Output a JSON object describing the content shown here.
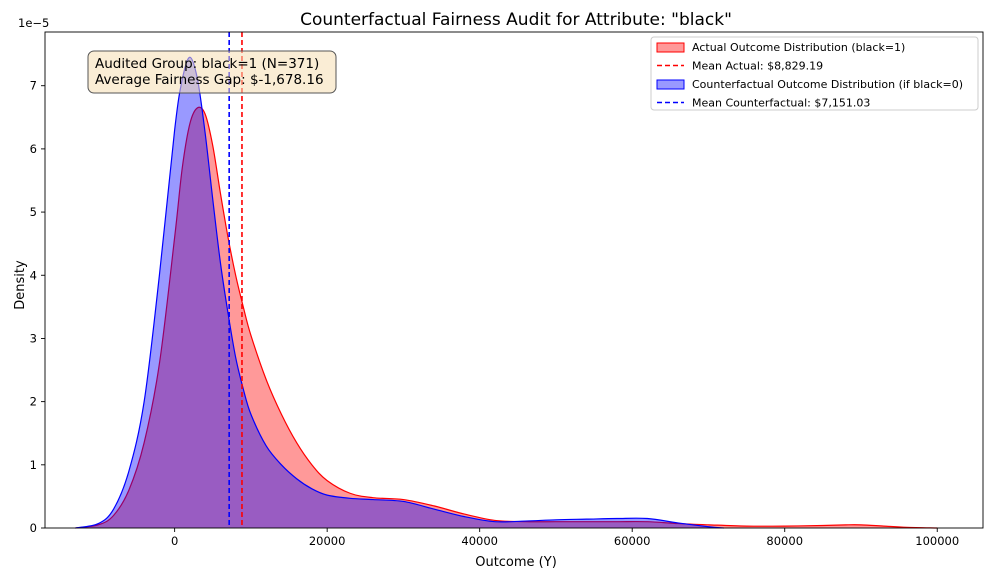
{
  "chart_data": {
    "type": "area",
    "title": "Counterfactual Fairness Audit for Attribute: \"black\"",
    "xlabel": "Outcome (Y)",
    "ylabel": "Density",
    "y_offset_text": "1e−5",
    "xlim": [
      -17000,
      106000
    ],
    "ylim": [
      0,
      7.85
    ],
    "x_ticks": [
      0,
      20000,
      40000,
      60000,
      80000,
      100000
    ],
    "x_tick_labels": [
      "0",
      "20000",
      "40000",
      "60000",
      "80000",
      "100000"
    ],
    "y_ticks": [
      0,
      1,
      2,
      3,
      4,
      5,
      6,
      7
    ],
    "y_tick_labels": [
      "0",
      "1",
      "2",
      "3",
      "4",
      "5",
      "6",
      "7"
    ],
    "grid": false,
    "legend_position": "top-right",
    "series": [
      {
        "name": "Actual Outcome Distribution (black=1)",
        "kind": "kde-area",
        "color": "#ff0000",
        "x": [
          -13000,
          -10000,
          -8000,
          -6000,
          -4000,
          -2000,
          0,
          1000,
          2000,
          3000,
          4000,
          5000,
          6000,
          7000,
          8000,
          9000,
          10000,
          12000,
          14000,
          16000,
          18000,
          20000,
          23000,
          26000,
          30000,
          34000,
          38000,
          42000,
          46000,
          50000,
          54000,
          58000,
          62000,
          66000,
          70000,
          75000,
          80000,
          85000,
          88000,
          90000,
          93000,
          96000,
          100000
        ],
        "y": [
          0.0,
          0.05,
          0.2,
          0.6,
          1.35,
          2.6,
          4.6,
          5.7,
          6.4,
          6.65,
          6.55,
          6.05,
          5.3,
          4.6,
          4.0,
          3.5,
          3.05,
          2.35,
          1.8,
          1.35,
          1.0,
          0.75,
          0.55,
          0.48,
          0.45,
          0.35,
          0.22,
          0.12,
          0.1,
          0.1,
          0.1,
          0.1,
          0.1,
          0.07,
          0.05,
          0.03,
          0.03,
          0.04,
          0.05,
          0.05,
          0.03,
          0.01,
          0.0
        ]
      },
      {
        "name": "Counterfactual Outcome Distribution (if black=0)",
        "kind": "kde-area",
        "color": "#0000ff",
        "x": [
          -13000,
          -10000,
          -8000,
          -6000,
          -4000,
          -2000,
          0,
          1000,
          2000,
          3000,
          4000,
          5000,
          6000,
          7000,
          8000,
          9000,
          10000,
          12000,
          14000,
          16000,
          18000,
          20000,
          23000,
          26000,
          30000,
          34000,
          38000,
          42000,
          46000,
          50000,
          54000,
          58000,
          62000,
          66000,
          70000,
          72000
        ],
        "y": [
          0.0,
          0.07,
          0.3,
          0.9,
          2.0,
          4.0,
          6.3,
          7.1,
          7.45,
          7.1,
          6.25,
          5.2,
          4.2,
          3.4,
          2.7,
          2.2,
          1.8,
          1.3,
          1.0,
          0.78,
          0.62,
          0.52,
          0.47,
          0.45,
          0.42,
          0.3,
          0.18,
          0.1,
          0.11,
          0.13,
          0.14,
          0.15,
          0.15,
          0.08,
          0.02,
          0.0
        ]
      }
    ],
    "reference_lines": [
      {
        "name": "Mean Actual: $8,829.19",
        "x": 8829.19,
        "color": "#ff0000",
        "style": "dashed"
      },
      {
        "name": "Mean Counterfactual: $7,151.03",
        "x": 7151.03,
        "color": "#0000ff",
        "style": "dashed"
      }
    ],
    "annotation": {
      "lines": [
        "Audited Group: black=1 (N=371)",
        "Average Fairness Gap: $-1,678.16"
      ]
    },
    "legend": [
      {
        "label": "Actual Outcome Distribution (black=1)",
        "marker": "patch",
        "fill": "#ff9999",
        "stroke": "#ff0000"
      },
      {
        "label": "Mean Actual: $8,829.19",
        "marker": "dashed-line",
        "stroke": "#ff0000"
      },
      {
        "label": "Counterfactual Outcome Distribution (if black=0)",
        "marker": "patch",
        "fill": "#9999ff",
        "stroke": "#0000ff"
      },
      {
        "label": "Mean Counterfactual: $7,151.03",
        "marker": "dashed-line",
        "stroke": "#0000ff"
      }
    ]
  }
}
